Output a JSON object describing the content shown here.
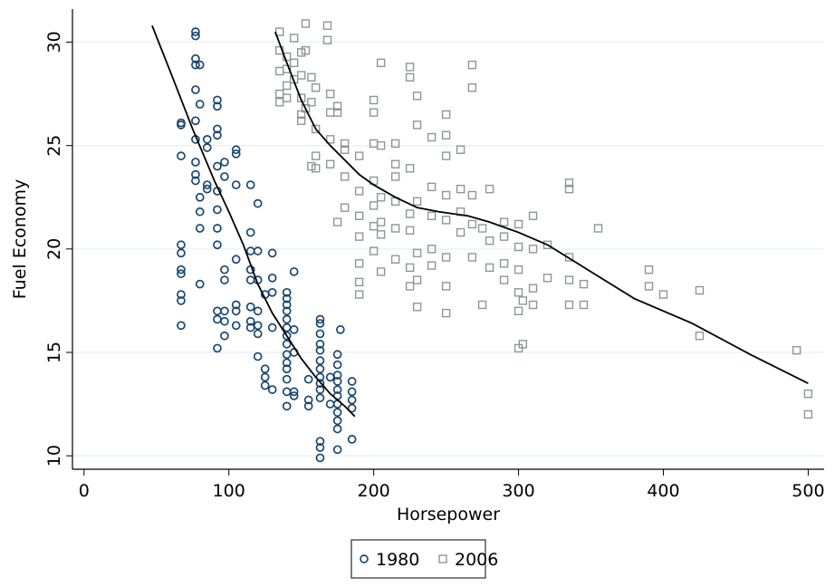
{
  "chart_data": {
    "type": "scatter",
    "xlabel": "Horsepower",
    "ylabel": "Fuel Economy",
    "xlim": [
      -8,
      511
    ],
    "ylim": [
      9.35,
      31.6
    ],
    "xticks": [
      0,
      100,
      200,
      300,
      400,
      500
    ],
    "yticks": [
      10,
      15,
      20,
      25,
      30
    ],
    "grid": true,
    "legend": "bottom",
    "series": [
      {
        "name": "1980",
        "color": "#1a476f",
        "marker": "circle",
        "x": [
          67,
          67,
          67,
          67,
          67,
          67,
          67,
          67,
          67,
          67,
          77,
          77,
          77,
          77,
          77,
          77,
          77,
          77,
          77,
          77,
          80,
          80,
          80,
          80,
          80,
          80,
          85,
          85,
          85,
          85,
          92,
          92,
          92,
          92,
          92,
          92,
          92,
          92,
          92,
          92,
          92,
          92,
          97,
          97,
          97,
          97,
          97,
          97,
          97,
          105,
          105,
          105,
          105,
          105,
          105,
          105,
          115,
          115,
          115,
          115,
          115,
          115,
          115,
          115,
          120,
          120,
          120,
          120,
          120,
          120,
          120,
          125,
          125,
          125,
          125,
          130,
          130,
          130,
          130,
          130,
          140,
          140,
          140,
          140,
          140,
          140,
          140,
          140,
          140,
          140,
          140,
          140,
          140,
          140,
          145,
          145,
          145,
          145,
          145,
          155,
          155,
          155,
          163,
          163,
          163,
          163,
          163,
          163,
          163,
          163,
          163,
          163,
          163,
          163,
          163,
          163,
          170,
          170,
          175,
          175,
          175,
          175,
          175,
          175,
          175,
          175,
          175,
          175,
          175,
          177,
          185,
          185,
          185,
          185,
          185
        ],
        "values": [
          26.1,
          26.0,
          24.5,
          20.2,
          19.8,
          19.0,
          18.8,
          17.8,
          17.5,
          16.3,
          30.5,
          30.3,
          29.2,
          28.9,
          27.7,
          26.2,
          25.3,
          24.2,
          23.6,
          23.3,
          28.9,
          27.0,
          22.5,
          21.8,
          21.0,
          18.3,
          25.3,
          24.9,
          23.1,
          22.9,
          27.2,
          26.9,
          25.8,
          25.5,
          24.0,
          22.8,
          21.9,
          21.0,
          20.2,
          17.0,
          16.6,
          15.2,
          24.2,
          23.5,
          19.0,
          18.5,
          17.0,
          16.5,
          15.8,
          24.8,
          24.6,
          23.1,
          19.5,
          17.3,
          17.0,
          16.3,
          23.1,
          20.8,
          19.9,
          19.0,
          18.5,
          17.2,
          16.5,
          16.2,
          22.2,
          19.9,
          18.5,
          17.0,
          16.3,
          15.9,
          14.8,
          17.8,
          14.2,
          13.8,
          13.4,
          19.8,
          18.6,
          17.9,
          16.2,
          13.2,
          17.9,
          17.6,
          17.3,
          17.0,
          16.6,
          16.2,
          15.8,
          15.4,
          14.9,
          14.5,
          14.2,
          13.7,
          13.1,
          12.4,
          18.9,
          16.1,
          15.0,
          13.1,
          12.9,
          13.7,
          12.7,
          12.4,
          16.6,
          16.4,
          15.9,
          15.4,
          15.1,
          14.6,
          14.2,
          13.8,
          13.5,
          13.2,
          12.8,
          10.7,
          10.4,
          9.9,
          13.8,
          12.5,
          14.9,
          14.4,
          13.9,
          13.6,
          13.2,
          12.9,
          12.5,
          12.1,
          11.7,
          11.3,
          10.3,
          16.1,
          13.6,
          13.1,
          12.7,
          12.3,
          10.8
        ]
      },
      {
        "name": "2006",
        "color": "#90959a",
        "marker": "square",
        "x": [
          135,
          135,
          135,
          135,
          135,
          140,
          140,
          140,
          140,
          145,
          145,
          145,
          150,
          150,
          150,
          150,
          150,
          153,
          153,
          153,
          157,
          157,
          157,
          160,
          160,
          160,
          160,
          168,
          168,
          170,
          170,
          170,
          170,
          175,
          175,
          175,
          180,
          180,
          180,
          180,
          190,
          190,
          190,
          190,
          190,
          190,
          190,
          200,
          200,
          200,
          200,
          200,
          200,
          200,
          205,
          205,
          205,
          205,
          205,
          205,
          215,
          215,
          215,
          215,
          215,
          215,
          225,
          225,
          225,
          225,
          225,
          225,
          225,
          230,
          230,
          230,
          230,
          230,
          230,
          240,
          240,
          240,
          240,
          240,
          250,
          250,
          250,
          250,
          250,
          250,
          250,
          250,
          260,
          260,
          260,
          260,
          268,
          268,
          268,
          268,
          268,
          275,
          275,
          280,
          280,
          280,
          290,
          290,
          290,
          290,
          300,
          300,
          300,
          300,
          300,
          300,
          303,
          303,
          310,
          310,
          310,
          310,
          320,
          320,
          335,
          335,
          335,
          335,
          335,
          345,
          345,
          355,
          390,
          390,
          400,
          425,
          425,
          492,
          500,
          500
        ],
        "values": [
          30.5,
          29.6,
          28.6,
          27.5,
          27.1,
          29.3,
          28.7,
          27.9,
          27.3,
          30.2,
          29.0,
          28.2,
          29.5,
          28.4,
          27.3,
          26.5,
          26.2,
          30.9,
          29.6,
          26.8,
          28.3,
          27.1,
          24.0,
          27.8,
          25.8,
          24.5,
          23.9,
          30.8,
          30.1,
          27.5,
          26.6,
          25.3,
          24.1,
          26.9,
          26.6,
          21.3,
          25.1,
          24.8,
          23.5,
          22.0,
          24.5,
          22.8,
          21.6,
          20.6,
          19.3,
          18.4,
          17.8,
          27.2,
          26.6,
          25.1,
          23.3,
          22.1,
          21.1,
          19.9,
          29.0,
          25.0,
          22.5,
          21.3,
          20.7,
          18.9,
          25.1,
          24.1,
          23.5,
          22.3,
          21.0,
          19.5,
          28.8,
          28.3,
          23.9,
          21.7,
          20.9,
          19.1,
          18.2,
          27.4,
          26.0,
          22.3,
          19.8,
          18.5,
          17.2,
          25.4,
          23.0,
          21.6,
          20.0,
          19.2,
          26.5,
          25.5,
          24.5,
          22.6,
          21.4,
          19.6,
          18.2,
          16.9,
          24.8,
          22.9,
          21.8,
          20.8,
          28.9,
          27.8,
          22.6,
          21.2,
          19.6,
          21.0,
          17.3,
          22.9,
          20.4,
          19.1,
          21.3,
          20.6,
          19.3,
          18.5,
          21.2,
          20.1,
          19.0,
          17.9,
          17.0,
          15.2,
          15.4,
          17.5,
          21.6,
          20.0,
          18.1,
          17.3,
          20.2,
          18.6,
          23.2,
          22.9,
          19.6,
          18.5,
          17.3,
          18.3,
          17.3,
          21.0,
          19.0,
          18.2,
          17.8,
          18.0,
          15.8,
          15.1,
          13.0,
          12.0
        ]
      }
    ],
    "fits": [
      {
        "color": "#000000",
        "x": [
          47,
          60,
          75,
          90,
          100,
          110,
          120,
          130,
          140,
          150,
          160,
          170,
          180,
          187
        ],
        "values": [
          30.8,
          28.5,
          25.8,
          23.3,
          21.8,
          20.2,
          18.3,
          16.9,
          15.8,
          14.7,
          13.8,
          13.0,
          12.4,
          11.9
        ]
      },
      {
        "color": "#000000",
        "x": [
          132,
          140,
          150,
          160,
          170,
          180,
          190,
          200,
          215,
          230,
          245,
          265,
          280,
          300,
          320,
          350,
          380,
          420,
          460,
          500
        ],
        "values": [
          30.5,
          29.0,
          27.2,
          25.8,
          25.0,
          24.3,
          23.6,
          23.1,
          22.5,
          22.0,
          21.8,
          21.6,
          21.3,
          20.8,
          20.2,
          18.9,
          17.6,
          16.4,
          14.9,
          13.5
        ]
      }
    ]
  }
}
